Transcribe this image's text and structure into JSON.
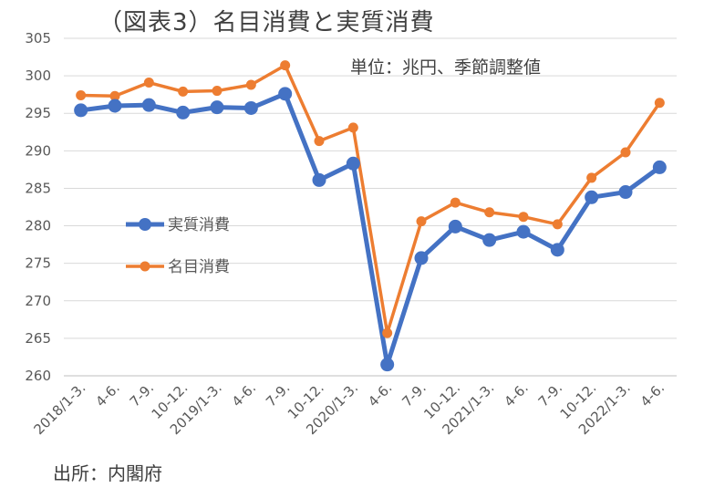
{
  "chart_data": {
    "type": "line",
    "title": "（図表3）名目消費と実質消費",
    "unit_note": "単位：兆円、季節調整値",
    "source": "出所：内閣府",
    "xlabel": "",
    "ylabel": "",
    "ylim": [
      260,
      305
    ],
    "yticks": [
      260,
      265,
      270,
      275,
      280,
      285,
      290,
      295,
      300,
      305
    ],
    "grid": true,
    "legend_position": "center-left",
    "categories": [
      "2018/1-3.",
      "4-6.",
      "7-9.",
      "10-12.",
      "2019/1-3.",
      "4-6.",
      "7-9.",
      "10-12.",
      "2020/1-3.",
      "4-6.",
      "7-9.",
      "10-12.",
      "2021/1-3.",
      "4-6.",
      "7-9.",
      "10-12.",
      "2022/1-3.",
      "4-6."
    ],
    "series": [
      {
        "name": "実質消費",
        "color": "#4472C4",
        "values": [
          295.4,
          296.0,
          296.1,
          295.1,
          295.8,
          295.7,
          297.6,
          286.1,
          288.3,
          261.5,
          275.7,
          279.9,
          278.1,
          279.2,
          276.8,
          283.8,
          284.5,
          287.8
        ]
      },
      {
        "name": "名目消費",
        "color": "#ED7D31",
        "values": [
          297.4,
          297.3,
          299.1,
          297.9,
          298.0,
          298.8,
          301.4,
          291.3,
          293.1,
          265.7,
          280.6,
          283.1,
          281.8,
          281.2,
          280.2,
          286.4,
          289.8,
          296.4
        ]
      }
    ]
  }
}
